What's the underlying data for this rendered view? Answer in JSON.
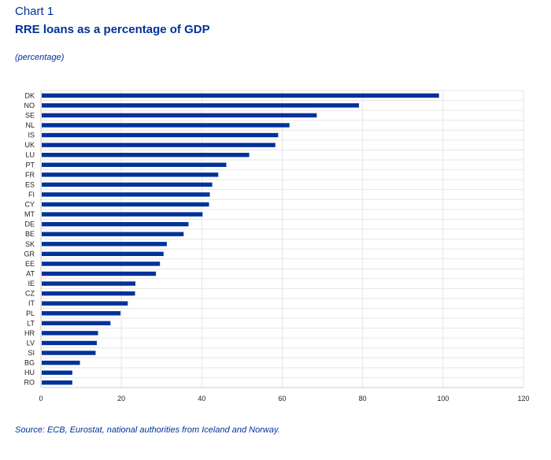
{
  "chart_label": "Chart 1",
  "chart_data": {
    "type": "bar",
    "orientation": "horizontal",
    "title": "RRE loans as a percentage of GDP",
    "subtitle": "(percentage)",
    "source": "Source: ECB, Eurostat, national authorities from Iceland and Norway.",
    "categories": [
      "DK",
      "NO",
      "SE",
      "NL",
      "IS",
      "UK",
      "LU",
      "PT",
      "FR",
      "ES",
      "FI",
      "CY",
      "MT",
      "DE",
      "BE",
      "SK",
      "GR",
      "EE",
      "AT",
      "IE",
      "CZ",
      "IT",
      "PL",
      "LT",
      "HR",
      "LV",
      "SI",
      "BG",
      "HU",
      "RO"
    ],
    "values": [
      99.0,
      79.1,
      68.6,
      61.8,
      59.0,
      58.3,
      51.8,
      46.1,
      44.1,
      42.6,
      42.0,
      41.8,
      40.2,
      36.7,
      35.5,
      31.3,
      30.5,
      29.6,
      28.6,
      23.5,
      23.4,
      21.6,
      19.8,
      17.3,
      14.2,
      13.9,
      13.6,
      9.7,
      7.8,
      7.8
    ],
    "xlim": [
      0,
      120
    ],
    "xticks": [
      0,
      20,
      40,
      60,
      80,
      100,
      120
    ],
    "xlabel": "",
    "ylabel": "",
    "grid": true,
    "bar_color": "#003299"
  }
}
